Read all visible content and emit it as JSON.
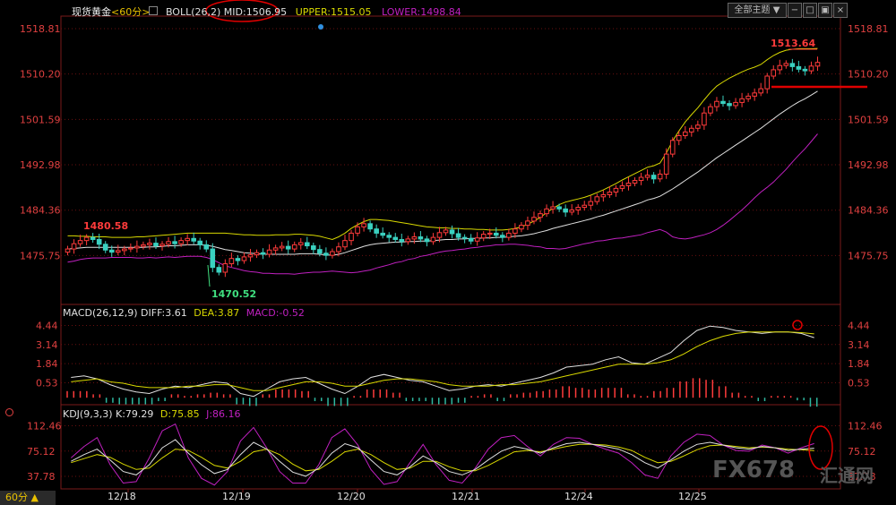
{
  "header": {
    "instrument": "现货黄金",
    "period": "<60分>",
    "boll_name": "BOLL(26,2)",
    "mid_label": "MID:1506.95",
    "upper_label": "UPPER:1515.05",
    "lower_label": "LOWER:1498.84",
    "theme_button": "全部主题",
    "theme_arrow": "▼"
  },
  "macd_header": {
    "name": "MACD(26,12,9)",
    "diff": "DIFF:3.61",
    "dea": "DEA:3.87",
    "macd": "MACD:-0.52"
  },
  "kdj_header": {
    "name": "KDJ(9,3,3)",
    "k": "K:79.29",
    "d": "D:75.85",
    "j": "J:86.16"
  },
  "footer": {
    "period": "60分 ▲"
  },
  "watermark": {
    "text": "FX678",
    "sub": "汇通网"
  },
  "colors": {
    "up": "#ff3b3b",
    "down": "#3ad1c0",
    "mid": "#e0e0e0",
    "upper": "#d8d800",
    "lower": "#c020c0",
    "axis_text": "#e04040",
    "grid": "#6a1010"
  },
  "chart_data": [
    {
      "type": "candlestick",
      "title": "现货黄金 60分",
      "y_ticks": [
        "1518.81",
        "1510.20",
        "1501.59",
        "1492.98",
        "1484.36",
        "1475.75"
      ],
      "ylim": [
        1467.5,
        1520.5
      ],
      "x_ticks": [
        "12/18",
        "12/19",
        "12/20",
        "12/21",
        "12/24",
        "12/25"
      ],
      "annotations": {
        "high": "1513.64",
        "low": "1470.52",
        "left_high": "1480.58"
      },
      "close": [
        1477.0,
        1478.0,
        1478.6,
        1479.2,
        1478.8,
        1477.9,
        1476.8,
        1476.4,
        1476.7,
        1477.0,
        1477.2,
        1477.5,
        1477.8,
        1478.1,
        1477.6,
        1477.9,
        1478.4,
        1478.0,
        1478.6,
        1479.0,
        1478.5,
        1477.8,
        1477.0,
        1473.5,
        1472.6,
        1474.2,
        1475.2,
        1474.8,
        1475.5,
        1475.9,
        1476.3,
        1476.0,
        1476.8,
        1477.2,
        1477.5,
        1477.0,
        1477.8,
        1478.2,
        1477.6,
        1476.9,
        1476.2,
        1475.8,
        1476.5,
        1477.4,
        1478.6,
        1480.0,
        1481.2,
        1481.8,
        1480.8,
        1480.0,
        1479.6,
        1479.2,
        1478.8,
        1478.4,
        1478.9,
        1479.3,
        1478.9,
        1478.4,
        1479.2,
        1480.1,
        1480.6,
        1479.9,
        1479.2,
        1479.0,
        1478.5,
        1479.1,
        1479.8,
        1480.0,
        1479.6,
        1479.2,
        1480.0,
        1480.8,
        1481.5,
        1482.3,
        1483.0,
        1483.7,
        1484.6,
        1485.0,
        1484.6,
        1484.0,
        1484.4,
        1484.9,
        1485.3,
        1486.0,
        1486.9,
        1487.3,
        1487.8,
        1488.5,
        1489.0,
        1489.5,
        1490.0,
        1490.6,
        1491.0,
        1490.3,
        1491.2,
        1495.0,
        1497.6,
        1498.5,
        1499.2,
        1499.9,
        1500.5,
        1502.8,
        1504.0,
        1505.0,
        1504.6,
        1504.2,
        1504.8,
        1505.5,
        1506.0,
        1506.6,
        1507.4,
        1509.8,
        1511.0,
        1511.8,
        1512.2,
        1511.6,
        1511.1,
        1510.8,
        1511.7,
        1512.4
      ],
      "upper": [
        1479.5,
        1479.5,
        1479.4,
        1479.4,
        1479.3,
        1479.3,
        1479.3,
        1479.2,
        1479.2,
        1479.2,
        1479.2,
        1479.3,
        1479.3,
        1479.4,
        1479.5,
        1479.6,
        1479.7,
        1479.8,
        1479.9,
        1480.0,
        1480.0,
        1480.0,
        1480.0,
        1480.0,
        1480.0,
        1480.0,
        1479.9,
        1479.8,
        1479.7,
        1479.7,
        1479.6,
        1479.6,
        1479.6,
        1479.7,
        1479.7,
        1479.7,
        1479.8,
        1479.8,
        1479.7,
        1479.6,
        1479.4,
        1479.1,
        1478.8,
        1479.3,
        1480.0,
        1480.9,
        1481.6,
        1482.2,
        1482.6,
        1482.6,
        1482.5,
        1482.4,
        1482.2,
        1482.0,
        1481.8,
        1481.6,
        1481.4,
        1481.2,
        1481.1,
        1481.0,
        1481.0,
        1480.9,
        1480.9,
        1480.8,
        1480.8,
        1480.7,
        1480.7,
        1480.6,
        1480.6,
        1480.6,
        1480.7,
        1480.9,
        1481.2,
        1481.7,
        1482.3,
        1483.0,
        1483.9,
        1484.7,
        1485.4,
        1485.9,
        1486.2,
        1486.5,
        1486.8,
        1487.2,
        1487.7,
        1488.2,
        1488.8,
        1489.4,
        1490.1,
        1490.7,
        1491.3,
        1491.9,
        1492.5,
        1492.8,
        1493.3,
        1495.2,
        1497.5,
        1499.4,
        1501.1,
        1502.5,
        1503.8,
        1505.3,
        1506.7,
        1507.9,
        1508.7,
        1509.4,
        1510.0,
        1510.6,
        1511.1,
        1511.5,
        1512.0,
        1512.9,
        1513.7,
        1514.3,
        1514.7,
        1514.9,
        1515.0,
        1515.0,
        1515.0,
        1515.05
      ],
      "mid": [
        1477.0,
        1477.1,
        1477.2,
        1477.3,
        1477.3,
        1477.3,
        1477.3,
        1477.3,
        1477.3,
        1477.3,
        1477.3,
        1477.3,
        1477.3,
        1477.4,
        1477.4,
        1477.5,
        1477.6,
        1477.6,
        1477.7,
        1477.8,
        1477.8,
        1477.8,
        1477.7,
        1477.5,
        1477.2,
        1476.9,
        1476.7,
        1476.5,
        1476.3,
        1476.2,
        1476.1,
        1476.0,
        1476.0,
        1476.0,
        1476.0,
        1476.0,
        1476.0,
        1476.1,
        1476.1,
        1476.1,
        1476.0,
        1475.9,
        1475.8,
        1476.0,
        1476.3,
        1476.7,
        1477.1,
        1477.5,
        1477.8,
        1478.0,
        1478.1,
        1478.2,
        1478.3,
        1478.3,
        1478.4,
        1478.4,
        1478.5,
        1478.5,
        1478.6,
        1478.7,
        1478.8,
        1478.8,
        1478.9,
        1478.9,
        1479.0,
        1479.0,
        1479.1,
        1479.1,
        1479.2,
        1479.2,
        1479.3,
        1479.4,
        1479.5,
        1479.7,
        1479.9,
        1480.2,
        1480.5,
        1480.9,
        1481.2,
        1481.5,
        1481.8,
        1482.1,
        1482.4,
        1482.7,
        1483.1,
        1483.4,
        1483.8,
        1484.2,
        1484.6,
        1485.0,
        1485.4,
        1485.8,
        1486.3,
        1486.6,
        1487.0,
        1487.7,
        1488.4,
        1489.2,
        1490.0,
        1490.8,
        1491.6,
        1492.5,
        1493.4,
        1494.3,
        1495.1,
        1495.9,
        1496.7,
        1497.5,
        1498.3,
        1499.1,
        1499.9,
        1500.8,
        1501.7,
        1502.6,
        1503.4,
        1504.2,
        1504.9,
        1505.5,
        1506.2,
        1506.95
      ],
      "lower": [
        1474.5,
        1474.7,
        1475.0,
        1475.2,
        1475.3,
        1475.3,
        1475.3,
        1475.4,
        1475.4,
        1475.4,
        1475.4,
        1475.3,
        1475.3,
        1475.4,
        1475.3,
        1475.4,
        1475.5,
        1475.4,
        1475.5,
        1475.6,
        1475.6,
        1475.6,
        1475.4,
        1475.0,
        1474.4,
        1473.8,
        1473.5,
        1473.2,
        1472.9,
        1472.7,
        1472.6,
        1472.4,
        1472.4,
        1472.3,
        1472.3,
        1472.3,
        1472.2,
        1472.4,
        1472.5,
        1472.6,
        1472.6,
        1472.7,
        1472.8,
        1472.7,
        1472.6,
        1472.5,
        1472.6,
        1472.8,
        1473.0,
        1473.4,
        1473.7,
        1474.0,
        1474.4,
        1474.6,
        1475.0,
        1475.2,
        1475.6,
        1475.8,
        1476.1,
        1476.4,
        1476.6,
        1476.7,
        1476.9,
        1477.0,
        1477.2,
        1477.3,
        1477.5,
        1477.6,
        1477.8,
        1477.8,
        1477.9,
        1477.9,
        1477.8,
        1477.7,
        1477.5,
        1477.4,
        1477.1,
        1477.1,
        1477.0,
        1477.1,
        1477.4,
        1477.7,
        1478.0,
        1478.2,
        1478.5,
        1478.6,
        1478.8,
        1479.0,
        1479.1,
        1479.3,
        1479.5,
        1479.7,
        1480.1,
        1480.4,
        1480.7,
        1480.2,
        1479.3,
        1479.0,
        1478.9,
        1479.1,
        1479.4,
        1479.7,
        1480.1,
        1480.7,
        1481.5,
        1482.4,
        1483.4,
        1484.4,
        1485.5,
        1486.7,
        1487.8,
        1488.7,
        1489.7,
        1490.9,
        1492.1,
        1493.5,
        1494.8,
        1496.0,
        1497.4,
        1498.84
      ]
    },
    {
      "type": "line",
      "title": "MACD(26,12,9)",
      "y_ticks": [
        "4.44",
        "3.14",
        "1.84",
        "0.53"
      ],
      "ylim": [
        -0.6,
        4.9
      ],
      "series": [
        {
          "name": "DIFF",
          "values": [
            0.9,
            1.0,
            0.8,
            0.4,
            0.1,
            -0.1,
            -0.2,
            0.1,
            0.3,
            0.2,
            0.4,
            0.6,
            0.5,
            -0.2,
            -0.4,
            0.1,
            0.6,
            0.8,
            0.9,
            0.5,
            0.1,
            -0.2,
            0.3,
            0.9,
            1.1,
            0.9,
            0.7,
            0.6,
            0.3,
            0.0,
            0.1,
            0.3,
            0.4,
            0.3,
            0.5,
            0.7,
            0.9,
            1.2,
            1.6,
            1.7,
            1.8,
            2.1,
            2.3,
            1.9,
            1.8,
            2.2,
            2.6,
            3.4,
            4.1,
            4.4,
            4.3,
            4.1,
            4.0,
            3.9,
            4.0,
            4.0,
            3.9,
            3.61
          ]
        },
        {
          "name": "DEA",
          "values": [
            0.6,
            0.7,
            0.8,
            0.6,
            0.5,
            0.3,
            0.2,
            0.2,
            0.2,
            0.3,
            0.3,
            0.4,
            0.4,
            0.2,
            0.0,
            0.0,
            0.2,
            0.4,
            0.6,
            0.6,
            0.5,
            0.3,
            0.3,
            0.5,
            0.7,
            0.8,
            0.8,
            0.7,
            0.6,
            0.4,
            0.3,
            0.3,
            0.3,
            0.4,
            0.4,
            0.5,
            0.6,
            0.8,
            1.0,
            1.2,
            1.4,
            1.6,
            1.8,
            1.8,
            1.8,
            1.9,
            2.1,
            2.5,
            3.0,
            3.4,
            3.7,
            3.9,
            4.0,
            4.0,
            4.0,
            4.0,
            3.95,
            3.87
          ]
        },
        {
          "name": "MACD",
          "values": [
            0.3,
            0.3,
            0.1,
            -0.2,
            -0.3,
            -0.3,
            -0.3,
            -0.1,
            0.1,
            0.0,
            0.1,
            0.2,
            0.1,
            -0.3,
            -0.4,
            0.1,
            0.4,
            0.4,
            0.3,
            -0.1,
            -0.4,
            -0.4,
            0.0,
            0.4,
            0.4,
            0.2,
            -0.1,
            -0.1,
            -0.3,
            -0.3,
            -0.2,
            0.0,
            0.1,
            -0.1,
            0.1,
            0.2,
            0.3,
            0.4,
            0.6,
            0.5,
            0.4,
            0.5,
            0.5,
            0.1,
            0.0,
            0.3,
            0.5,
            0.9,
            1.1,
            1.0,
            0.6,
            0.2,
            0.0,
            -0.1,
            0.0,
            0.0,
            -0.05,
            -0.52
          ]
        }
      ]
    },
    {
      "type": "line",
      "title": "KDJ(9,3,3)",
      "y_ticks": [
        "112.46",
        "75.12",
        "37.78"
      ],
      "ylim": [
        22,
        125
      ],
      "series": [
        {
          "name": "K",
          "values": [
            60,
            70,
            78,
            62,
            45,
            40,
            55,
            80,
            92,
            72,
            55,
            42,
            48,
            70,
            88,
            78,
            60,
            44,
            38,
            50,
            72,
            86,
            80,
            62,
            45,
            40,
            52,
            68,
            58,
            45,
            40,
            48,
            62,
            75,
            82,
            78,
            72,
            80,
            86,
            88,
            85,
            82,
            78,
            70,
            58,
            50,
            62,
            75,
            85,
            88,
            84,
            80,
            78,
            82,
            80,
            76,
            78,
            79.29
          ]
        },
        {
          "name": "D",
          "values": [
            58,
            64,
            70,
            66,
            56,
            48,
            50,
            65,
            78,
            76,
            66,
            54,
            50,
            60,
            74,
            78,
            70,
            56,
            46,
            48,
            60,
            74,
            78,
            70,
            58,
            48,
            50,
            60,
            60,
            52,
            46,
            46,
            54,
            64,
            74,
            76,
            74,
            78,
            82,
            85,
            85,
            84,
            81,
            76,
            66,
            58,
            60,
            68,
            77,
            83,
            84,
            82,
            80,
            81,
            80,
            78,
            77,
            75.85
          ]
        },
        {
          "name": "J",
          "values": [
            65,
            82,
            95,
            55,
            28,
            30,
            65,
            105,
            115,
            65,
            35,
            25,
            45,
            90,
            110,
            80,
            45,
            28,
            28,
            55,
            95,
            108,
            84,
            48,
            26,
            30,
            58,
            85,
            55,
            32,
            28,
            50,
            78,
            95,
            98,
            82,
            68,
            85,
            95,
            94,
            85,
            78,
            72,
            58,
            40,
            35,
            68,
            88,
            100,
            98,
            84,
            76,
            75,
            84,
            80,
            72,
            80,
            86.16
          ]
        }
      ]
    }
  ]
}
